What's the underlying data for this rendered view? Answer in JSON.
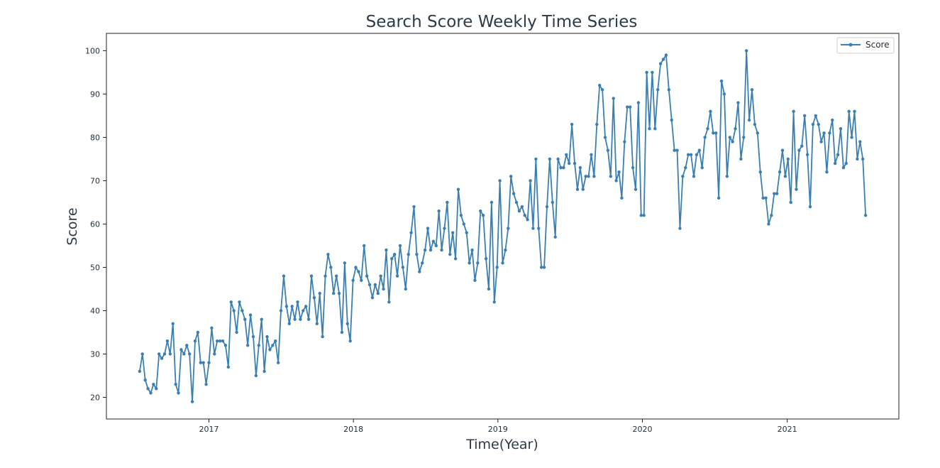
{
  "chart_data": {
    "type": "line",
    "title": "Search Score Weekly Time Series",
    "xlabel": "Time(Year)",
    "ylabel": "Score",
    "x_start": "2016-07-10",
    "x_frequency": "weekly",
    "x_ticks": [
      "2017",
      "2018",
      "2019",
      "2020",
      "2021"
    ],
    "y_ticks": [
      "20",
      "30",
      "40",
      "50",
      "60",
      "70",
      "80",
      "90",
      "100"
    ],
    "ylim": [
      15,
      104
    ],
    "xlim": [
      "2016-04-17",
      "2021-10-10"
    ],
    "grid": false,
    "legend_position": "top-right",
    "series": [
      {
        "name": "Score",
        "color": "#3a7fb1",
        "values": [
          26,
          30,
          24,
          22,
          21,
          23,
          22,
          30,
          29,
          30,
          33,
          30,
          37,
          23,
          21,
          31,
          30,
          32,
          30,
          19,
          33,
          35,
          28,
          28,
          23,
          28,
          36,
          30,
          33,
          33,
          33,
          32,
          27,
          42,
          40,
          35,
          42,
          40,
          38,
          32,
          39,
          34,
          25,
          32,
          38,
          26,
          34,
          31,
          32,
          33,
          28,
          40,
          48,
          41,
          37,
          41,
          38,
          42,
          38,
          40,
          41,
          38,
          48,
          43,
          37,
          44,
          34,
          48,
          53,
          50,
          44,
          48,
          44,
          35,
          51,
          37,
          33,
          47,
          50,
          49,
          47,
          55,
          48,
          46,
          43,
          46,
          44,
          48,
          45,
          54,
          42,
          52,
          53,
          48,
          55,
          50,
          45,
          53,
          58,
          64,
          53,
          49,
          51,
          54,
          59,
          54,
          56,
          55,
          63,
          54,
          59,
          65,
          53,
          58,
          52,
          68,
          62,
          60,
          58,
          51,
          54,
          47,
          51,
          63,
          62,
          52,
          45,
          65,
          42,
          50,
          70,
          51,
          54,
          59,
          71,
          67,
          65,
          63,
          64,
          62,
          61,
          70,
          59,
          75,
          59,
          50,
          50,
          64,
          75,
          65,
          57,
          75,
          73,
          73,
          76,
          74,
          83,
          74,
          68,
          73,
          68,
          71,
          71,
          76,
          71,
          83,
          92,
          91,
          80,
          77,
          71,
          89,
          70,
          72,
          66,
          79,
          87,
          87,
          73,
          68,
          88,
          62,
          62,
          95,
          82,
          95,
          82,
          91,
          97,
          98,
          99,
          91,
          84,
          77,
          77,
          59,
          71,
          73,
          76,
          76,
          71,
          76,
          77,
          73,
          80,
          82,
          86,
          81,
          81,
          66,
          93,
          90,
          71,
          80,
          79,
          82,
          88,
          75,
          80,
          100,
          84,
          91,
          83,
          81,
          72,
          66,
          66,
          60,
          62,
          67,
          67,
          72,
          77,
          71,
          75,
          65,
          86,
          68,
          77,
          78,
          85,
          76,
          64,
          83,
          85,
          83,
          79,
          81,
          72,
          81,
          84,
          74,
          76,
          82,
          73,
          74,
          86,
          80,
          86,
          75,
          79,
          75,
          62
        ]
      }
    ]
  }
}
